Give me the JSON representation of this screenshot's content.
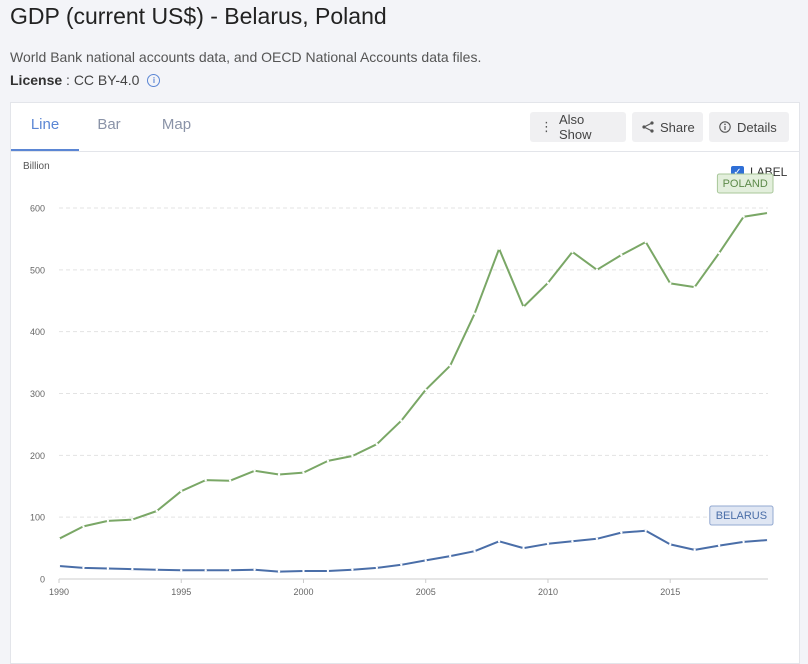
{
  "header": {
    "title": "GDP (current US$) - Belarus, Poland",
    "source": "World Bank national accounts data, and OECD National Accounts data files.",
    "license_label": "License",
    "license_sep": " : ",
    "license_value": "CC BY-4.0",
    "info_icon_glyph": "i"
  },
  "tabs": [
    {
      "label": "Line",
      "active": true
    },
    {
      "label": "Bar",
      "active": false
    },
    {
      "label": "Map",
      "active": false
    }
  ],
  "actions": {
    "also_show": "Also Show",
    "share": "Share",
    "details": "Details"
  },
  "label_toggle": {
    "text": "LABEL",
    "checked": true
  },
  "colors": {
    "poland": "#7aa766",
    "belarus": "#4a6ea8",
    "accent": "#5b86d4"
  },
  "chart_data": {
    "type": "line",
    "ylabel": "Billion",
    "x_ticks": [
      1990,
      1995,
      2000,
      2005,
      2010,
      2015
    ],
    "y_ticks": [
      0,
      100,
      200,
      300,
      400,
      500,
      600
    ],
    "ylim": [
      0,
      600
    ],
    "xlim": [
      1990,
      2019
    ],
    "grid": true,
    "x": [
      1990,
      1991,
      1992,
      1993,
      1994,
      1995,
      1996,
      1997,
      1998,
      1999,
      2000,
      2001,
      2002,
      2003,
      2004,
      2005,
      2006,
      2007,
      2008,
      2009,
      2010,
      2011,
      2012,
      2013,
      2014,
      2015,
      2016,
      2017,
      2018,
      2019
    ],
    "series": [
      {
        "name": "POLAND",
        "color": "#7aa766",
        "values": [
          65,
          85,
          94,
          96,
          110,
          142,
          160,
          159,
          175,
          169,
          172,
          191,
          199,
          218,
          256,
          306,
          345,
          429,
          534,
          440,
          479,
          529,
          500,
          524,
          545,
          478,
          472,
          527,
          586,
          592
        ]
      },
      {
        "name": "BELARUS",
        "color": "#4a6ea8",
        "values": [
          21,
          18,
          17,
          16,
          15,
          14,
          14,
          14,
          15,
          12,
          13,
          13,
          15,
          18,
          23,
          30,
          37,
          45,
          61,
          50,
          57,
          61,
          65,
          75,
          78,
          56,
          47,
          54,
          60,
          63
        ]
      }
    ]
  }
}
